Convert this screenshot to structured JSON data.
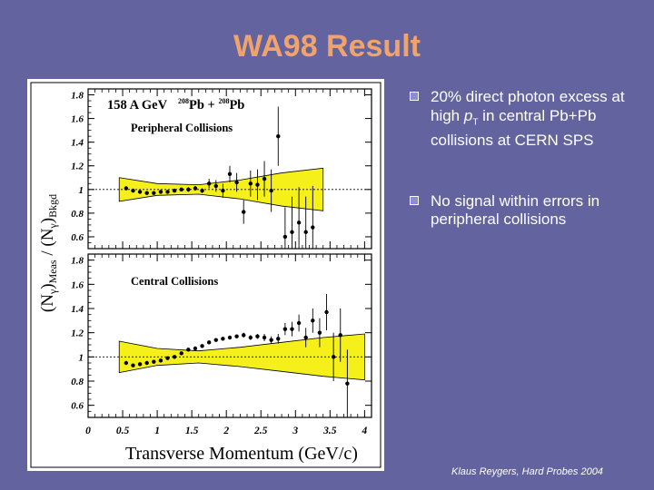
{
  "slide": {
    "title": "WA98 Result",
    "credit": "Klaus Reygers, Hard Probes 2004"
  },
  "bullets": [
    {
      "text": "20% direct photon excess at high pT in central Pb+Pb collisions at CERN SPS"
    },
    {
      "text": "No signal within errors in peripheral collisions"
    }
  ],
  "colors": {
    "background": "#63649f",
    "title": "#f0a36b",
    "band": "#f5f01a",
    "points": "#000000"
  },
  "chart_data": [
    {
      "type": "scatter",
      "panel": "top",
      "annotation_energy": "158 A GeV",
      "annotation_system": [
        "208",
        "Pb + ",
        "208",
        "Pb"
      ],
      "label": "Peripheral Collisions",
      "ylim": [
        0.5,
        1.85
      ],
      "yticks": [
        "0.6",
        "0.8",
        "1",
        "1.2",
        "1.4",
        "1.6",
        "1.8"
      ],
      "xlim": [
        0,
        4.1
      ],
      "reference_line": 1.0,
      "points": [
        {
          "x": 0.55,
          "y": 1.01,
          "err": 0.01
        },
        {
          "x": 0.65,
          "y": 0.99,
          "err": 0.01
        },
        {
          "x": 0.75,
          "y": 0.98,
          "err": 0.01
        },
        {
          "x": 0.85,
          "y": 0.97,
          "err": 0.01
        },
        {
          "x": 0.95,
          "y": 0.97,
          "err": 0.01
        },
        {
          "x": 1.05,
          "y": 0.98,
          "err": 0.01
        },
        {
          "x": 1.15,
          "y": 0.98,
          "err": 0.01
        },
        {
          "x": 1.25,
          "y": 0.99,
          "err": 0.01
        },
        {
          "x": 1.35,
          "y": 1.0,
          "err": 0.01
        },
        {
          "x": 1.45,
          "y": 1.0,
          "err": 0.02
        },
        {
          "x": 1.55,
          "y": 1.01,
          "err": 0.02
        },
        {
          "x": 1.65,
          "y": 0.99,
          "err": 0.02
        },
        {
          "x": 1.75,
          "y": 1.05,
          "err": 0.04
        },
        {
          "x": 1.85,
          "y": 1.03,
          "err": 0.05
        },
        {
          "x": 1.95,
          "y": 0.99,
          "err": 0.06
        },
        {
          "x": 2.05,
          "y": 1.13,
          "err": 0.07
        },
        {
          "x": 2.15,
          "y": 1.06,
          "err": 0.08
        },
        {
          "x": 2.25,
          "y": 0.81,
          "err": 0.1
        },
        {
          "x": 2.35,
          "y": 1.05,
          "err": 0.11
        },
        {
          "x": 2.45,
          "y": 1.04,
          "err": 0.13
        },
        {
          "x": 2.55,
          "y": 1.09,
          "err": 0.15
        },
        {
          "x": 2.65,
          "y": 0.99,
          "err": 0.18
        },
        {
          "x": 2.75,
          "y": 1.45,
          "err": 0.25
        },
        {
          "x": 2.85,
          "y": 0.6,
          "err": 0.25
        },
        {
          "x": 2.95,
          "y": 0.64,
          "err": 0.3
        },
        {
          "x": 3.05,
          "y": 0.72,
          "err": 0.3
        },
        {
          "x": 3.15,
          "y": 0.64,
          "err": 0.3
        },
        {
          "x": 3.25,
          "y": 0.68,
          "err": 0.35
        }
      ],
      "band_halfwidth": [
        {
          "x": 0.45,
          "h": 0.1
        },
        {
          "x": 1.0,
          "h": 0.05
        },
        {
          "x": 1.6,
          "h": 0.04
        },
        {
          "x": 2.2,
          "h": 0.08
        },
        {
          "x": 2.8,
          "h": 0.14
        },
        {
          "x": 3.4,
          "h": 0.18
        }
      ]
    },
    {
      "type": "scatter",
      "panel": "bottom",
      "label": "Central Collisions",
      "ylim": [
        0.5,
        1.85
      ],
      "yticks": [
        "0.6",
        "0.8",
        "1",
        "1.2",
        "1.4",
        "1.6",
        "1.8"
      ],
      "xlim": [
        0,
        4.1
      ],
      "xticks": [
        "0",
        "0.5",
        "1",
        "1.5",
        "2",
        "2.5",
        "3",
        "3.5",
        "4"
      ],
      "xlabel": "Transverse Momentum (GeV/c)",
      "reference_line": 1.0,
      "points": [
        {
          "x": 0.55,
          "y": 0.95,
          "err": 0.01
        },
        {
          "x": 0.65,
          "y": 0.93,
          "err": 0.01
        },
        {
          "x": 0.75,
          "y": 0.94,
          "err": 0.01
        },
        {
          "x": 0.85,
          "y": 0.95,
          "err": 0.01
        },
        {
          "x": 0.95,
          "y": 0.96,
          "err": 0.01
        },
        {
          "x": 1.05,
          "y": 0.97,
          "err": 0.01
        },
        {
          "x": 1.15,
          "y": 0.99,
          "err": 0.01
        },
        {
          "x": 1.25,
          "y": 1.0,
          "err": 0.01
        },
        {
          "x": 1.35,
          "y": 1.03,
          "err": 0.01
        },
        {
          "x": 1.45,
          "y": 1.06,
          "err": 0.01
        },
        {
          "x": 1.55,
          "y": 1.07,
          "err": 0.01
        },
        {
          "x": 1.65,
          "y": 1.09,
          "err": 0.01
        },
        {
          "x": 1.75,
          "y": 1.12,
          "err": 0.01
        },
        {
          "x": 1.85,
          "y": 1.14,
          "err": 0.01
        },
        {
          "x": 1.95,
          "y": 1.15,
          "err": 0.01
        },
        {
          "x": 2.05,
          "y": 1.16,
          "err": 0.01
        },
        {
          "x": 2.15,
          "y": 1.17,
          "err": 0.01
        },
        {
          "x": 2.25,
          "y": 1.18,
          "err": 0.02
        },
        {
          "x": 2.35,
          "y": 1.16,
          "err": 0.02
        },
        {
          "x": 2.45,
          "y": 1.17,
          "err": 0.02
        },
        {
          "x": 2.55,
          "y": 1.16,
          "err": 0.03
        },
        {
          "x": 2.65,
          "y": 1.14,
          "err": 0.03
        },
        {
          "x": 2.75,
          "y": 1.15,
          "err": 0.04
        },
        {
          "x": 2.85,
          "y": 1.23,
          "err": 0.05
        },
        {
          "x": 2.95,
          "y": 1.23,
          "err": 0.06
        },
        {
          "x": 3.05,
          "y": 1.28,
          "err": 0.07
        },
        {
          "x": 3.15,
          "y": 1.16,
          "err": 0.08
        },
        {
          "x": 3.25,
          "y": 1.3,
          "err": 0.1
        },
        {
          "x": 3.35,
          "y": 1.2,
          "err": 0.12
        },
        {
          "x": 3.45,
          "y": 1.37,
          "err": 0.15
        },
        {
          "x": 3.55,
          "y": 1.0,
          "err": 0.2
        },
        {
          "x": 3.65,
          "y": 1.18,
          "err": 0.22
        },
        {
          "x": 3.75,
          "y": 0.78,
          "err": 0.28
        }
      ],
      "band_halfwidth": [
        {
          "x": 0.45,
          "h": 0.13
        },
        {
          "x": 1.0,
          "h": 0.07
        },
        {
          "x": 1.6,
          "h": 0.05
        },
        {
          "x": 2.2,
          "h": 0.08
        },
        {
          "x": 2.8,
          "h": 0.12
        },
        {
          "x": 3.4,
          "h": 0.16
        },
        {
          "x": 4.0,
          "h": 0.19
        }
      ]
    }
  ],
  "yaxis": {
    "label_parts": [
      "(N",
      "γ",
      ")",
      "Meas",
      " / (N",
      "γ",
      ")",
      "Bkgd"
    ]
  }
}
